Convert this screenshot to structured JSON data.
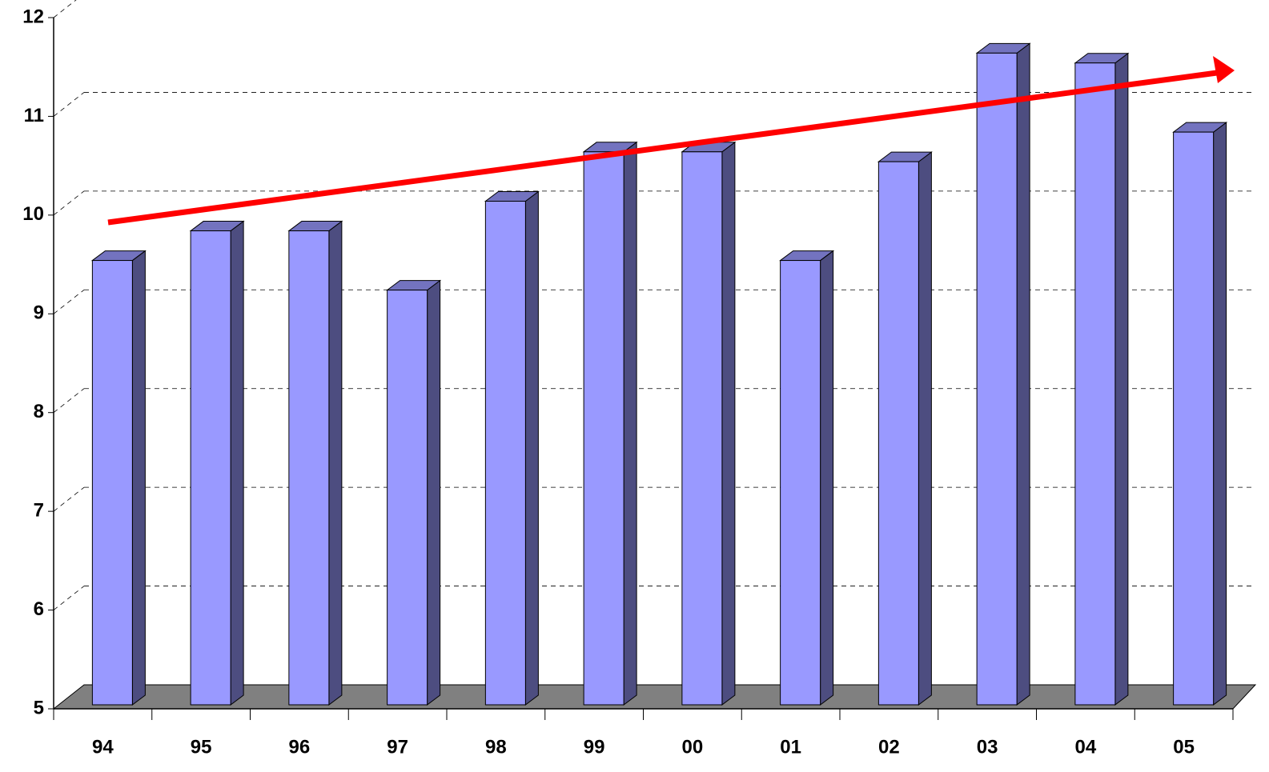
{
  "chart_data": {
    "type": "bar3d",
    "categories": [
      "94",
      "95",
      "96",
      "97",
      "98",
      "99",
      "00",
      "01",
      "02",
      "03",
      "04",
      "05"
    ],
    "values": [
      9.5,
      9.8,
      9.8,
      9.2,
      10.1,
      10.6,
      10.6,
      9.5,
      10.5,
      11.6,
      11.5,
      10.8
    ],
    "color": "#9999ff",
    "ylim": [
      5,
      12
    ],
    "yticks": [
      5,
      6,
      7,
      8,
      9,
      10,
      11,
      12
    ],
    "grid": true
  }
}
